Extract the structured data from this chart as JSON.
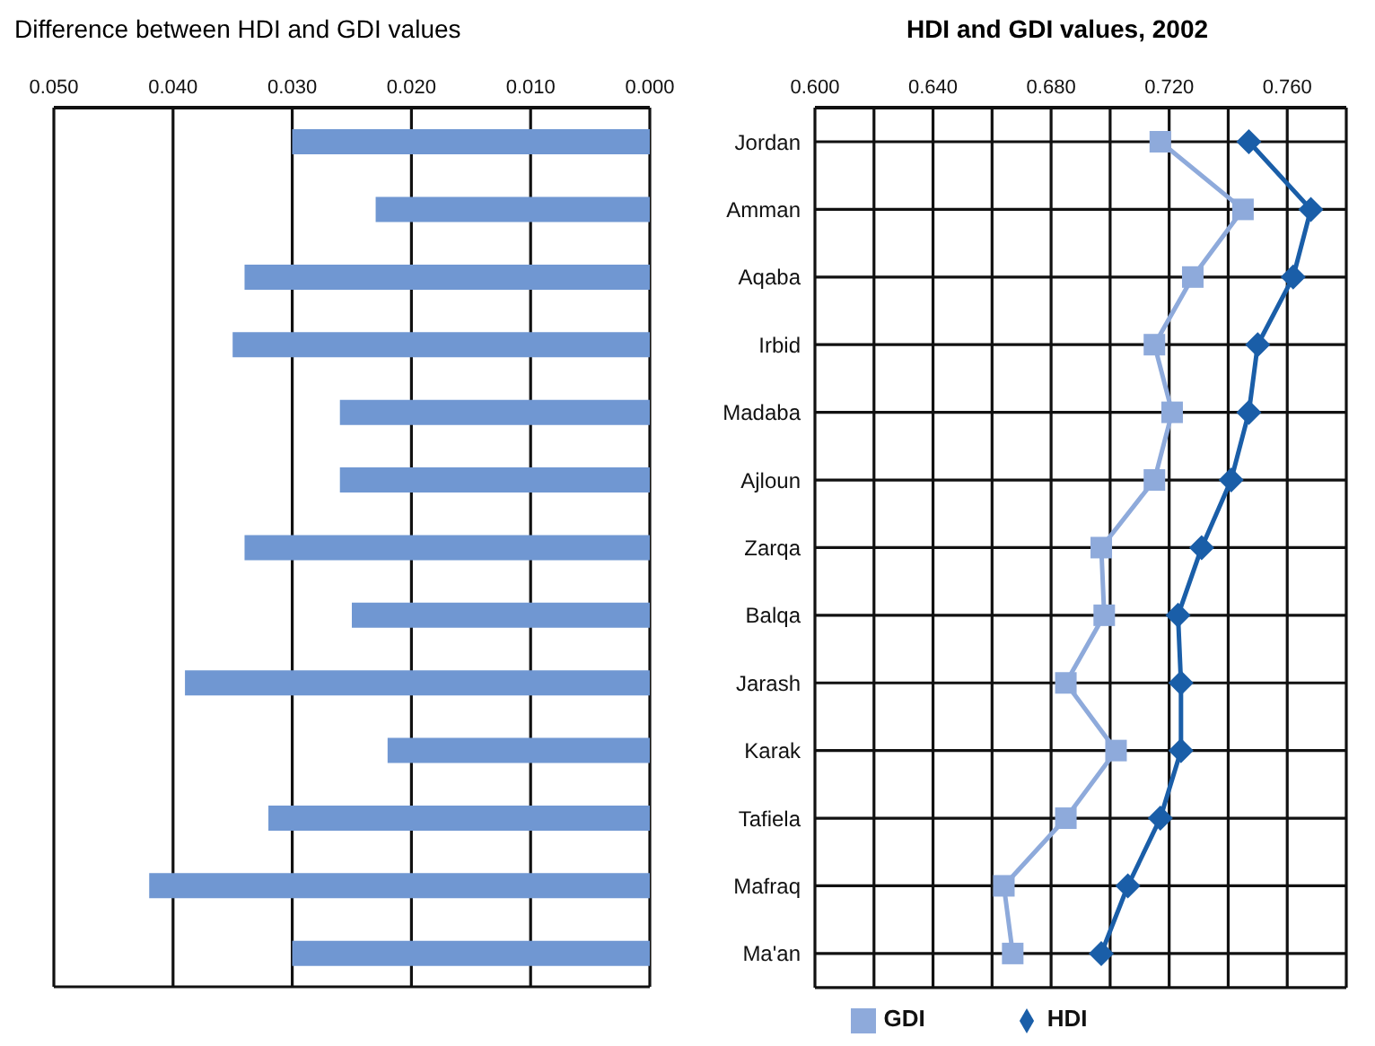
{
  "chart_data": [
    {
      "type": "bar",
      "orientation": "horizontal",
      "title": "Difference between HDI and GDI values",
      "categories": [
        null,
        null,
        null,
        null,
        null,
        null,
        null,
        null,
        null,
        null,
        null,
        null,
        null
      ],
      "values": [
        0.03,
        0.023,
        0.034,
        0.035,
        0.026,
        0.026,
        0.034,
        0.025,
        0.039,
        0.022,
        0.032,
        0.042,
        0.03
      ],
      "color": "#7097d2",
      "xlim": [
        0.05,
        0
      ],
      "xticks": [
        {
          "value": 0.05,
          "label": "0.050"
        },
        {
          "value": 0.04,
          "label": "0.040"
        },
        {
          "value": 0.03,
          "label": "0.030"
        },
        {
          "value": 0.02,
          "label": "0.020"
        },
        {
          "value": 0.01,
          "label": "0.010"
        },
        {
          "value": 0,
          "label": "0.000"
        }
      ],
      "grid": "x",
      "tick_labels": "x"
    },
    {
      "type": "line",
      "orientation": "horizontal",
      "title": "HDI and GDI values, 2002",
      "categories": [
        "Jordan",
        "Amman",
        "Aqaba",
        "Irbid",
        "Madaba",
        "Ajloun",
        "Zarqa",
        "Balqa",
        "Jarash",
        "Karak",
        "Tafiela",
        "Mafraq",
        "Ma'an"
      ],
      "series": [
        {
          "name": "GDI",
          "color": "#8eaadb",
          "marker": "square",
          "values": [
            0.717,
            0.745,
            0.728,
            0.715,
            0.721,
            0.715,
            0.697,
            0.698,
            0.685,
            0.702,
            0.685,
            0.664,
            0.667
          ]
        },
        {
          "name": "HDI",
          "color": "#1a5ea8",
          "marker": "diamond",
          "values": [
            0.747,
            0.768,
            0.762,
            0.75,
            0.747,
            0.741,
            0.731,
            0.723,
            0.724,
            0.724,
            0.717,
            0.706,
            0.697
          ]
        }
      ],
      "xlim": [
        0.6,
        0.78
      ],
      "xticks": [
        {
          "value": 0.6,
          "label": "0.600"
        },
        {
          "value": 0.62,
          "label": null
        },
        {
          "value": 0.64,
          "label": "0.640"
        },
        {
          "value": 0.66,
          "label": null
        },
        {
          "value": 0.68,
          "label": "0.680"
        },
        {
          "value": 0.7,
          "label": null
        },
        {
          "value": 0.72,
          "label": "0.720"
        },
        {
          "value": 0.74,
          "label": null
        },
        {
          "value": 0.76,
          "label": "0.760"
        }
      ],
      "grid": true,
      "legend": "bottom"
    }
  ]
}
